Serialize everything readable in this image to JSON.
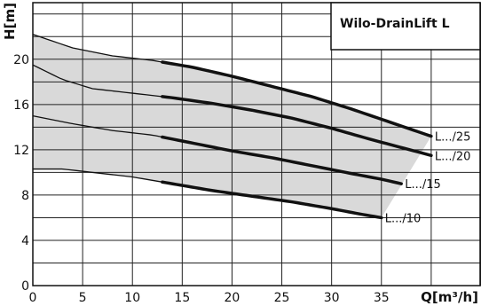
{
  "chart_data": {
    "type": "line",
    "title": "Wilo-DrainLift L",
    "xlabel": "Q[m³/h]",
    "ylabel": "H[m]",
    "xlim": [
      0,
      45
    ],
    "ylim": [
      0,
      25
    ],
    "x_ticks": [
      0,
      5,
      10,
      15,
      20,
      25,
      30,
      35
    ],
    "y_ticks": [
      0,
      4,
      8,
      12,
      16,
      20
    ],
    "grid": true,
    "shaded_band_color": "#d9d9d9",
    "line_color": "#111111",
    "series": [
      {
        "name": "L.../25",
        "points": [
          [
            0,
            22.2
          ],
          [
            4,
            21.0
          ],
          [
            8,
            20.3
          ],
          [
            12,
            19.9
          ],
          [
            16,
            19.3
          ],
          [
            20,
            18.5
          ],
          [
            24,
            17.6
          ],
          [
            28,
            16.7
          ],
          [
            32,
            15.6
          ],
          [
            36,
            14.4
          ],
          [
            40,
            13.2
          ]
        ],
        "highlight_from": 13
      },
      {
        "name": "L.../20",
        "points": [
          [
            0,
            19.5
          ],
          [
            3,
            18.2
          ],
          [
            6,
            17.4
          ],
          [
            10,
            17.0
          ],
          [
            14,
            16.6
          ],
          [
            18,
            16.1
          ],
          [
            22,
            15.5
          ],
          [
            26,
            14.8
          ],
          [
            30,
            13.9
          ],
          [
            34,
            12.9
          ],
          [
            37,
            12.2
          ],
          [
            40,
            11.5
          ]
        ],
        "highlight_from": 13
      },
      {
        "name": "L.../15",
        "points": [
          [
            0,
            15.0
          ],
          [
            4,
            14.3
          ],
          [
            8,
            13.7
          ],
          [
            12,
            13.3
          ],
          [
            16,
            12.6
          ],
          [
            20,
            11.9
          ],
          [
            24,
            11.3
          ],
          [
            28,
            10.6
          ],
          [
            32,
            9.9
          ],
          [
            35,
            9.4
          ],
          [
            37,
            9.0
          ]
        ],
        "highlight_from": 13
      },
      {
        "name": "L.../10",
        "points": [
          [
            0,
            10.3
          ],
          [
            3,
            10.3
          ],
          [
            6,
            10.0
          ],
          [
            10,
            9.6
          ],
          [
            14,
            9.0
          ],
          [
            18,
            8.4
          ],
          [
            22,
            7.9
          ],
          [
            26,
            7.4
          ],
          [
            30,
            6.8
          ],
          [
            33,
            6.3
          ],
          [
            35,
            6.0
          ]
        ],
        "highlight_from": 13
      }
    ]
  }
}
